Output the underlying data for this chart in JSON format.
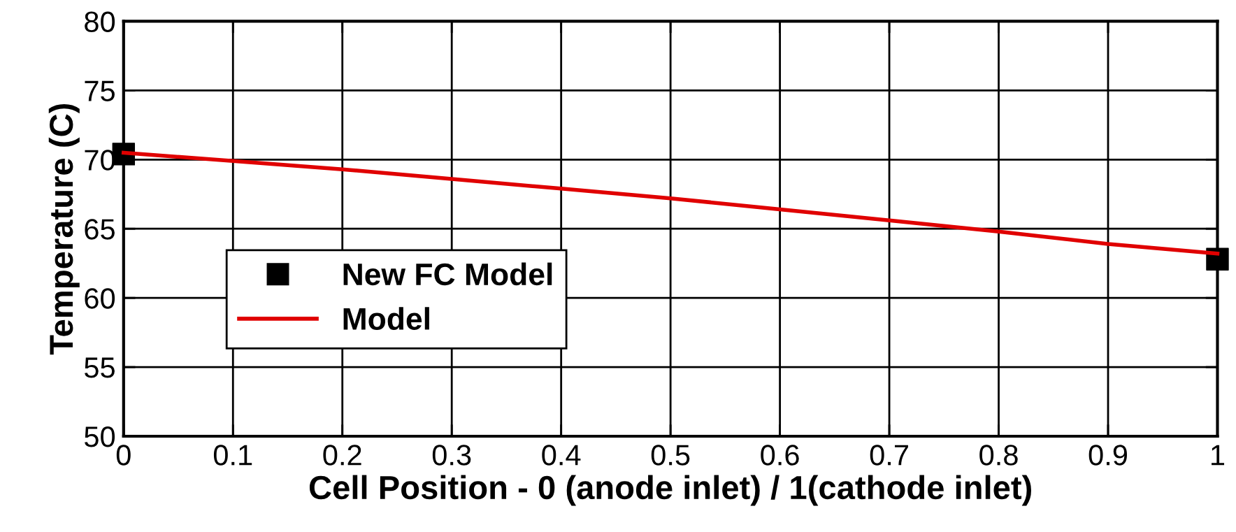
{
  "chart_data": {
    "type": "line",
    "xlabel": "Cell Position - 0 (anode inlet) / 1(cathode inlet)",
    "ylabel": "Temperature (C)",
    "xlim": [
      0,
      1
    ],
    "ylim": [
      50,
      80
    ],
    "xticks": [
      0,
      0.1,
      0.2,
      0.3,
      0.4,
      0.5,
      0.6,
      0.7,
      0.8,
      0.9,
      1
    ],
    "yticks": [
      50,
      55,
      60,
      65,
      70,
      75,
      80
    ],
    "grid": true,
    "legend": "left",
    "series": [
      {
        "name": "New FC Model",
        "type": "scatter",
        "marker": "square",
        "color": "#000000",
        "x": [
          0,
          1
        ],
        "values": [
          70.4,
          62.8
        ]
      },
      {
        "name": "Model",
        "marker": "none",
        "line_style": "solid",
        "color": "#e00000",
        "x": [
          0,
          0.1,
          0.2,
          0.3,
          0.4,
          0.5,
          0.6,
          0.7,
          0.8,
          0.9,
          1.0
        ],
        "values": [
          70.5,
          69.9,
          69.3,
          68.6,
          67.9,
          67.2,
          66.4,
          65.6,
          64.8,
          63.9,
          63.2
        ]
      }
    ]
  }
}
